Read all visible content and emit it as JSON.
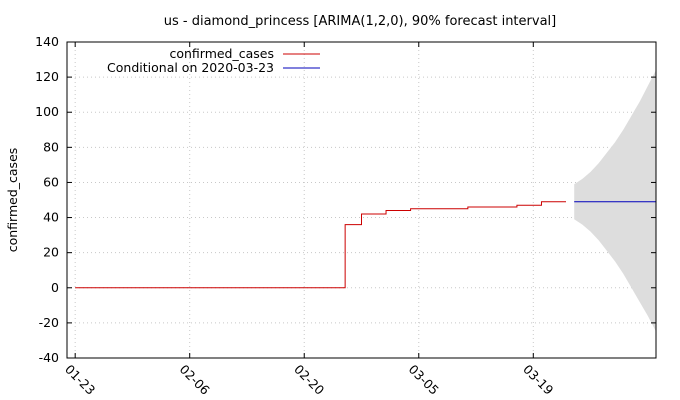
{
  "chart_data": {
    "type": "line",
    "title": "us - diamond_princess [ARIMA(1,2,0), 90% forecast interval]",
    "ylabel": "confirmed_cases",
    "xlabel": "",
    "ylim": [
      -40,
      140
    ],
    "yticks": [
      -40,
      -20,
      0,
      20,
      40,
      60,
      80,
      100,
      120,
      140
    ],
    "x_axis": {
      "type": "date",
      "start": "2020-01-22",
      "end": "2020-04-03",
      "ticks": [
        {
          "date": "2020-01-23",
          "label": "01-23"
        },
        {
          "date": "2020-02-06",
          "label": "02-06"
        },
        {
          "date": "2020-02-20",
          "label": "02-20"
        },
        {
          "date": "2020-03-05",
          "label": "03-05"
        },
        {
          "date": "2020-03-19",
          "label": "03-19"
        }
      ]
    },
    "grid": true,
    "legend_position": "top-left",
    "series": [
      {
        "name": "confirmed_cases",
        "color": "#cc0000",
        "points": [
          [
            "2020-01-23",
            0
          ],
          [
            "2020-02-24",
            0
          ],
          [
            "2020-02-25",
            36
          ],
          [
            "2020-02-26",
            36
          ],
          [
            "2020-02-27",
            42
          ],
          [
            "2020-02-28",
            42
          ],
          [
            "2020-02-29",
            42
          ],
          [
            "2020-03-01",
            44
          ],
          [
            "2020-03-02",
            44
          ],
          [
            "2020-03-03",
            44
          ],
          [
            "2020-03-04",
            45
          ],
          [
            "2020-03-10",
            45
          ],
          [
            "2020-03-11",
            46
          ],
          [
            "2020-03-16",
            46
          ],
          [
            "2020-03-17",
            47
          ],
          [
            "2020-03-19",
            47
          ],
          [
            "2020-03-20",
            49
          ],
          [
            "2020-03-23",
            49
          ]
        ]
      },
      {
        "name": "Conditional on 2020-03-23",
        "color": "#0000bb",
        "points": [
          [
            "2020-03-24",
            49
          ],
          [
            "2020-04-03",
            49
          ]
        ]
      }
    ],
    "forecast_interval": {
      "color": "#dddddd",
      "points": [
        [
          "2020-03-24",
          39,
          59
        ],
        [
          "2020-03-25",
          36,
          62
        ],
        [
          "2020-03-26",
          32,
          66
        ],
        [
          "2020-03-27",
          27,
          71
        ],
        [
          "2020-03-28",
          21,
          77
        ],
        [
          "2020-03-29",
          15,
          83
        ],
        [
          "2020-03-30",
          8,
          90
        ],
        [
          "2020-03-31",
          0,
          98
        ],
        [
          "2020-04-01",
          -8,
          106
        ],
        [
          "2020-04-02",
          -16,
          115
        ],
        [
          "2020-04-03",
          -25,
          124
        ]
      ]
    }
  }
}
